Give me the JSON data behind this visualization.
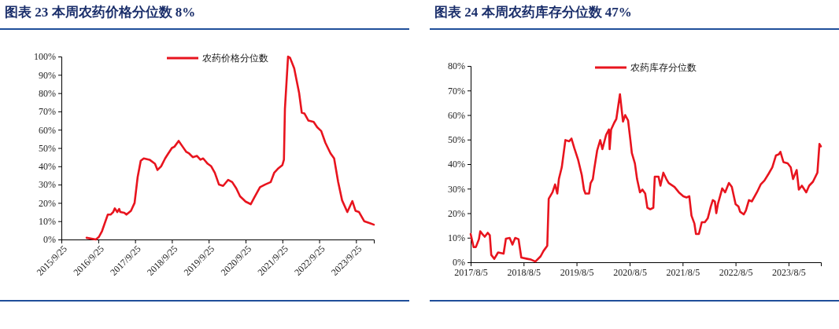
{
  "chart_data": [
    {
      "type": "line",
      "title": "图表 23   本周农药价格分位数 8%",
      "legend": "top",
      "grid": false,
      "marker": "none",
      "line_style": "solid",
      "xlim": [
        "2015-09-25",
        "2024-03-20"
      ],
      "xticks": [
        {
          "value": "2015-09-25",
          "label": "2015/9/25"
        },
        {
          "value": "2016-09-25",
          "label": "2016/9/25"
        },
        {
          "value": "2017-09-25",
          "label": "2017/9/25"
        },
        {
          "value": "2018-09-25",
          "label": "2018/9/25"
        },
        {
          "value": "2019-09-25",
          "label": "2019/9/25"
        },
        {
          "value": "2020-09-25",
          "label": "2020/9/25"
        },
        {
          "value": "2021-09-25",
          "label": "2021/9/25"
        },
        {
          "value": "2022-09-25",
          "label": "2022/9/25"
        },
        {
          "value": "2023-09-25",
          "label": "2023/9/25"
        }
      ],
      "ylim": [
        0,
        100
      ],
      "yticks": [
        {
          "value": 0,
          "label": "0%"
        },
        {
          "value": 10,
          "label": "10%"
        },
        {
          "value": 20,
          "label": "20%"
        },
        {
          "value": 30,
          "label": "30%"
        },
        {
          "value": 40,
          "label": "40%"
        },
        {
          "value": 50,
          "label": "50%"
        },
        {
          "value": 60,
          "label": "60%"
        },
        {
          "value": 70,
          "label": "70%"
        },
        {
          "value": 80,
          "label": "80%"
        },
        {
          "value": 90,
          "label": "90%"
        },
        {
          "value": 100,
          "label": "100%"
        }
      ],
      "series": [
        {
          "name": "农药价格分位数",
          "color": "#e8141e",
          "x": [
            "2016-06",
            "2016-09",
            "2016-10",
            "2016-11",
            "2016-12-28",
            "2017-01-25",
            "2017-02-20",
            "2017-03-08",
            "2017-04",
            "2017-04-20",
            "2017-05",
            "2017-06-10",
            "2017-07",
            "2017-08-15",
            "2017-09-20",
            "2017-10-05",
            "2017-10-20",
            "2017-11-20",
            "2017-12-20",
            "2018-02-15",
            "2018-04-10",
            "2018-05-05",
            "2018-06-10",
            "2018-07-20",
            "2018-08-20",
            "2018-09-25",
            "2018-10-20",
            "2018-12-01",
            "2019-01-10",
            "2019-02-15",
            "2019-03-15",
            "2019-04-20",
            "2019-06-01",
            "2019-07-05",
            "2019-08-01",
            "2019-09-15",
            "2019-10-20",
            "2019-11-25",
            "2020-01-05",
            "2020-02-15",
            "2020-04-05",
            "2020-05-15",
            "2020-06-25",
            "2020-08-01",
            "2020-09-25",
            "2020-11-15",
            "2020-12-20",
            "2021-02-15",
            "2021-04-05",
            "2021-06-01",
            "2021-07-05",
            "2021-08-10",
            "2021-09-25",
            "2021-10-10",
            "2021-10-20",
            "2021-11-20",
            "2021-12-10",
            "2022-01-20",
            "2022-02-15",
            "2022-03-10",
            "2022-04-05",
            "2022-05-01",
            "2022-06-10",
            "2022-08-01",
            "2022-09-05",
            "2022-10-15",
            "2022-11-25",
            "2023-01-15",
            "2023-02-20",
            "2023-04-01",
            "2023-05-10",
            "2023-07-01",
            "2023-08-20",
            "2023-09-20",
            "2023-10-25",
            "2023-12-15",
            "2024-02-10",
            "2024-03-20"
          ],
          "values": [
            0.9,
            0,
            1.4,
            4.6,
            13.6,
            13.6,
            15,
            17,
            15,
            16.7,
            15,
            14.6,
            13.6,
            15.7,
            20,
            27,
            34,
            43,
            44.3,
            43.6,
            41.4,
            38,
            40,
            44.3,
            47,
            50,
            50.7,
            53.9,
            50.7,
            47.9,
            47,
            45,
            45.7,
            43.6,
            44.3,
            41.4,
            40,
            36.4,
            30,
            29.3,
            32.6,
            31.4,
            27.9,
            23.6,
            20.7,
            19.3,
            22.9,
            28.6,
            30,
            31.4,
            36.4,
            38.6,
            40.7,
            43.6,
            71.4,
            100,
            99.3,
            93.6,
            86.4,
            80,
            69.3,
            68.9,
            65,
            64.3,
            61.4,
            59.3,
            52.9,
            47.1,
            44.3,
            31.4,
            21.4,
            15,
            21,
            15.7,
            15,
            10,
            8.9,
            8.1
          ]
        }
      ]
    },
    {
      "type": "line",
      "title": "图表 24   本周农药库存分位数 47%",
      "legend": "top",
      "grid": false,
      "marker": "none",
      "line_style": "solid",
      "xlim": [
        "2017-08-05",
        "2024-03-15"
      ],
      "xticks": [
        {
          "value": "2017-08-05",
          "label": "2017/8/5"
        },
        {
          "value": "2018-08-05",
          "label": "2018/8/5"
        },
        {
          "value": "2019-08-05",
          "label": "2019/8/5"
        },
        {
          "value": "2020-08-05",
          "label": "2020/8/5"
        },
        {
          "value": "2021-08-05",
          "label": "2021/8/5"
        },
        {
          "value": "2022-08-05",
          "label": "2022/8/5"
        },
        {
          "value": "2023-08-05",
          "label": "2023/8/5"
        }
      ],
      "ylim": [
        0,
        80
      ],
      "yticks": [
        {
          "value": 0,
          "label": "0%"
        },
        {
          "value": 10,
          "label": "10%"
        },
        {
          "value": 20,
          "label": "20%"
        },
        {
          "value": 30,
          "label": "30%"
        },
        {
          "value": 40,
          "label": "40%"
        },
        {
          "value": 50,
          "label": "50%"
        },
        {
          "value": 60,
          "label": "60%"
        },
        {
          "value": 70,
          "label": "70%"
        },
        {
          "value": 80,
          "label": "80%"
        }
      ],
      "series": [
        {
          "name": "农药库存分位数",
          "color": "#e8141e",
          "x": [
            "2017-08-05",
            "2017-08-25",
            "2017-09-10",
            "2017-10-01",
            "2017-10-10",
            "2017-10-25",
            "2017-11-10",
            "2017-12-01",
            "2017-12-15",
            "2017-12-25",
            "2018-01-15",
            "2018-02-10",
            "2018-03-20",
            "2018-04-05",
            "2018-05-01",
            "2018-05-20",
            "2018-06-08",
            "2018-07-01",
            "2018-07-20",
            "2018-08-30",
            "2018-09-25",
            "2018-10-25",
            "2018-11-30",
            "2018-12-20",
            "2019-01-15",
            "2019-01-25",
            "2019-02-20",
            "2019-03-10",
            "2019-03-25",
            "2019-04-05",
            "2019-04-25",
            "2019-05-20",
            "2019-06-15",
            "2019-07-01",
            "2019-07-20",
            "2019-08-15",
            "2019-09-10",
            "2019-09-25",
            "2019-10-05",
            "2019-10-30",
            "2019-11-10",
            "2019-11-25",
            "2019-12-05",
            "2019-12-25",
            "2020-01-15",
            "2020-01-30",
            "2020-02-25",
            "2020-03-15",
            "2020-03-20",
            "2020-03-30",
            "2020-04-20",
            "2020-05-05",
            "2020-05-30",
            "2020-06-20",
            "2020-07-05",
            "2020-07-25",
            "2020-08-10",
            "2020-08-20",
            "2020-09-10",
            "2020-09-25",
            "2020-10-15",
            "2020-11-01",
            "2020-11-20",
            "2020-12-05",
            "2020-12-25",
            "2021-01-15",
            "2021-01-25",
            "2021-02-20",
            "2021-03-05",
            "2021-03-25",
            "2021-04-15",
            "2021-05-01",
            "2021-06-10",
            "2021-07-10",
            "2021-08-10",
            "2021-09-01",
            "2021-09-20",
            "2021-10-05",
            "2021-10-25",
            "2021-11-05",
            "2021-11-25",
            "2021-12-15",
            "2022-01-05",
            "2022-01-25",
            "2022-02-15",
            "2022-03-01",
            "2022-03-15",
            "2022-03-25",
            "2022-04-05",
            "2022-05-05",
            "2022-05-25",
            "2022-06-20",
            "2022-07-10",
            "2022-08-05",
            "2022-08-25",
            "2022-09-05",
            "2022-09-30",
            "2022-10-15",
            "2022-11-05",
            "2022-11-25",
            "2022-12-30",
            "2023-01-25",
            "2023-02-20",
            "2023-03-20",
            "2023-04-15",
            "2023-05-10",
            "2023-05-30",
            "2023-06-10",
            "2023-07-01",
            "2023-07-30",
            "2023-08-20",
            "2023-09-05",
            "2023-09-30",
            "2023-10-15",
            "2023-11-05",
            "2023-12-05",
            "2023-12-25",
            "2024-01-20",
            "2024-02-20",
            "2024-03-05",
            "2024-03-15"
          ],
          "values": [
            11.5,
            6.2,
            6.2,
            9.4,
            12.6,
            11.5,
            10.4,
            12,
            11,
            3,
            1.4,
            4,
            3.5,
            9.6,
            9.9,
            7.2,
            9.9,
            9.4,
            1.9,
            1.4,
            1.1,
            0.3,
            2.4,
            4.6,
            6.7,
            25.9,
            28.5,
            31.7,
            28,
            33.9,
            38.7,
            49.8,
            49.3,
            50.4,
            46.6,
            41.9,
            35.5,
            29.6,
            28,
            28,
            32.3,
            33.9,
            38.1,
            45.6,
            49.8,
            46.1,
            52,
            54.1,
            46.1,
            54.1,
            56.8,
            58.4,
            68.5,
            57.3,
            60,
            57.8,
            49.8,
            44.5,
            40.3,
            33.9,
            28.5,
            29.6,
            28,
            22.2,
            21.6,
            22.2,
            34.9,
            34.9,
            31.2,
            36.5,
            33.9,
            32.3,
            30.7,
            28.5,
            26.9,
            26.4,
            26.9,
            19,
            15.8,
            11.5,
            11.5,
            16.3,
            16.3,
            17.9,
            22.7,
            25.3,
            24.8,
            20,
            23.7,
            30.1,
            28.5,
            32.3,
            30.7,
            23.7,
            22.7,
            20.6,
            19.5,
            21.1,
            25.3,
            24.8,
            28.5,
            31.7,
            33.3,
            36,
            38.7,
            43.5,
            44,
            45,
            40.8,
            40.3,
            38.7,
            33.9,
            37.6,
            29.6,
            31.2,
            28.5,
            31.2,
            32.8,
            36.5,
            48.2,
            47.2
          ]
        }
      ]
    }
  ]
}
